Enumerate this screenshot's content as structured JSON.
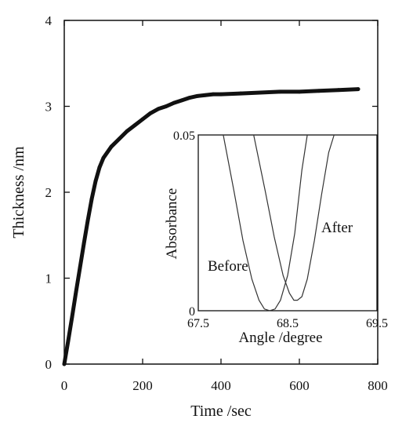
{
  "chart_data": [
    {
      "type": "line",
      "title": "",
      "xlabel": "Time /sec",
      "ylabel": "Thickness /nm",
      "xlim": [
        0,
        800
      ],
      "ylim": [
        0,
        4
      ],
      "xticks": [
        "0",
        "200",
        "400",
        "600",
        "800"
      ],
      "yticks": [
        "0",
        "1",
        "2",
        "3",
        "4"
      ],
      "grid": false,
      "legend": "none",
      "series": [
        {
          "x": [
            0,
            10,
            20,
            30,
            40,
            50,
            60,
            70,
            80,
            90,
            100,
            120,
            140,
            160,
            180,
            200,
            220,
            240,
            260,
            280,
            300,
            320,
            340,
            360,
            380,
            400,
            450,
            500,
            550,
            600,
            650,
            700,
            750
          ],
          "y": [
            0,
            0.27,
            0.55,
            0.84,
            1.12,
            1.4,
            1.67,
            1.92,
            2.13,
            2.29,
            2.4,
            2.53,
            2.62,
            2.71,
            2.78,
            2.85,
            2.92,
            2.97,
            3.0,
            3.04,
            3.07,
            3.1,
            3.12,
            3.13,
            3.14,
            3.14,
            3.15,
            3.16,
            3.17,
            3.17,
            3.18,
            3.19,
            3.2
          ],
          "color": "#111111"
        }
      ]
    },
    {
      "type": "line",
      "title": "",
      "xlabel": "Angle /degree",
      "ylabel": "Absorbance",
      "xlim": [
        67.5,
        69.5
      ],
      "ylim": [
        0,
        0.05
      ],
      "xticks": [
        "67.5",
        "68.5",
        "69.5"
      ],
      "yticks": [
        "0",
        "0.05"
      ],
      "grid": false,
      "annotations": [
        "Before",
        "After"
      ],
      "series": [
        {
          "x": [
            67.78,
            67.9,
            68.0,
            68.1,
            68.18,
            68.24,
            68.3,
            68.36,
            68.42,
            68.5,
            68.58,
            68.66,
            68.72
          ],
          "y": [
            0.05,
            0.034,
            0.02,
            0.009,
            0.003,
            0.0005,
            0.0,
            0.0005,
            0.003,
            0.01,
            0.022,
            0.04,
            0.05
          ],
          "color": "#333333"
        },
        {
          "x": [
            68.12,
            68.25,
            68.35,
            68.45,
            68.52,
            68.57,
            68.61,
            68.66,
            68.72,
            68.8,
            68.88,
            68.96,
            69.02
          ],
          "y": [
            0.05,
            0.034,
            0.021,
            0.01,
            0.005,
            0.003,
            0.003,
            0.004,
            0.009,
            0.02,
            0.033,
            0.045,
            0.05
          ],
          "color": "#333333"
        }
      ]
    }
  ]
}
